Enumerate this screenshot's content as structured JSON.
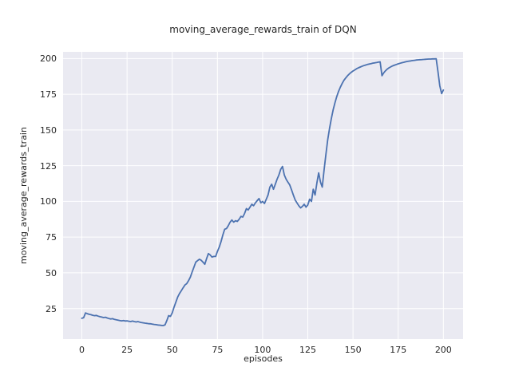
{
  "chart_data": {
    "type": "line",
    "title": "moving_average_rewards_train of DQN",
    "xlabel": "episodes",
    "ylabel": "moving_average_rewards_train",
    "x_ticks": [
      0,
      25,
      50,
      75,
      100,
      125,
      150,
      175,
      200
    ],
    "y_ticks": [
      25,
      50,
      75,
      100,
      125,
      150,
      175,
      200
    ],
    "xlim": [
      -10.4,
      210.9
    ],
    "ylim": [
      3.6,
      204.7
    ],
    "grid": "on",
    "legend": "none",
    "colors": {
      "line": "#4c72b0",
      "plot_background": "#eaeaf2",
      "gridline": "#ffffff",
      "text": "#262626"
    },
    "series": [
      {
        "name": "moving_average_rewards_train",
        "x": [
          0,
          1,
          2,
          3,
          4,
          5,
          6,
          7,
          8,
          9,
          10,
          11,
          12,
          13,
          14,
          15,
          16,
          17,
          18,
          19,
          20,
          21,
          22,
          23,
          24,
          25,
          26,
          27,
          28,
          29,
          30,
          31,
          32,
          33,
          34,
          35,
          36,
          37,
          38,
          39,
          40,
          41,
          42,
          43,
          44,
          45,
          46,
          47,
          48,
          49,
          50,
          51,
          52,
          53,
          54,
          55,
          56,
          57,
          58,
          59,
          60,
          61,
          62,
          63,
          64,
          65,
          66,
          67,
          68,
          69,
          70,
          71,
          72,
          73,
          74,
          75,
          76,
          77,
          78,
          79,
          80,
          81,
          82,
          83,
          84,
          85,
          86,
          87,
          88,
          89,
          90,
          91,
          92,
          93,
          94,
          95,
          96,
          97,
          98,
          99,
          100,
          101,
          102,
          103,
          104,
          105,
          106,
          107,
          108,
          109,
          110,
          111,
          112,
          113,
          114,
          115,
          116,
          117,
          118,
          119,
          120,
          121,
          122,
          123,
          124,
          125,
          126,
          127,
          128,
          129,
          130,
          131,
          132,
          133,
          134,
          135,
          136,
          137,
          138,
          139,
          140,
          141,
          142,
          143,
          144,
          145,
          146,
          147,
          148,
          149,
          150,
          151,
          152,
          153,
          154,
          155,
          156,
          157,
          158,
          159,
          160,
          161,
          162,
          163,
          164,
          165,
          166,
          167,
          168,
          169,
          170,
          171,
          172,
          173,
          174,
          175,
          176,
          177,
          178,
          179,
          180,
          181,
          182,
          183,
          184,
          185,
          186,
          187,
          188,
          189,
          190,
          191,
          192,
          193,
          194,
          195,
          196,
          197,
          198,
          199,
          200
        ],
        "y": [
          18.2,
          18.6,
          21.9,
          21.4,
          21.0,
          20.7,
          20.3,
          20.0,
          20.2,
          19.7,
          19.3,
          19.0,
          18.7,
          18.9,
          18.4,
          18.0,
          17.7,
          17.9,
          17.4,
          17.1,
          16.9,
          16.6,
          16.4,
          16.6,
          16.3,
          16.4,
          16.1,
          15.9,
          16.2,
          15.9,
          15.6,
          15.9,
          15.5,
          15.2,
          15.0,
          14.8,
          14.6,
          14.4,
          14.3,
          14.1,
          13.9,
          13.7,
          13.5,
          13.4,
          13.2,
          13.1,
          13.6,
          16.5,
          20.0,
          19.5,
          22.0,
          26.0,
          29.5,
          33.0,
          35.5,
          37.5,
          39.5,
          41.5,
          42.5,
          44.5,
          47.0,
          50.5,
          54.0,
          57.5,
          58.5,
          59.5,
          58.8,
          57.5,
          56.0,
          60.0,
          63.5,
          62.5,
          61.0,
          61.5,
          61.5,
          65.0,
          68.0,
          72.0,
          76.5,
          80.5,
          81.0,
          83.0,
          85.5,
          87.0,
          85.5,
          86.5,
          86.0,
          87.5,
          89.5,
          89.0,
          91.5,
          95.0,
          94.0,
          96.0,
          98.0,
          97.0,
          99.0,
          100.5,
          102.0,
          99.0,
          100.0,
          98.5,
          101.5,
          104.5,
          110.0,
          112.0,
          108.5,
          112.0,
          115.5,
          118.5,
          122.5,
          124.5,
          118.5,
          115.5,
          113.5,
          111.5,
          108.0,
          104.5,
          101.0,
          99.0,
          97.0,
          95.5,
          96.5,
          98.0,
          96.0,
          97.5,
          101.5,
          100.0,
          108.5,
          104.5,
          113.0,
          120.0,
          113.5,
          110.0,
          122.0,
          133.0,
          143.0,
          151.0,
          158.0,
          164.0,
          169.0,
          173.5,
          177.0,
          180.0,
          182.5,
          184.8,
          186.5,
          188.0,
          189.3,
          190.4,
          191.3,
          192.1,
          192.9,
          193.5,
          194.1,
          194.6,
          195.1,
          195.5,
          195.9,
          196.2,
          196.5,
          196.8,
          197.0,
          197.2,
          197.5,
          197.7,
          188.0,
          190.0,
          191.5,
          192.7,
          193.6,
          194.3,
          194.9,
          195.4,
          195.9,
          196.3,
          196.7,
          197.1,
          197.4,
          197.7,
          198.0,
          198.2,
          198.4,
          198.6,
          198.8,
          199.0,
          199.1,
          199.2,
          199.3,
          199.4,
          199.5,
          199.6,
          199.7,
          199.7,
          199.8,
          199.8,
          199.9,
          191.0,
          181.0,
          175.5,
          178.0
        ]
      }
    ]
  }
}
